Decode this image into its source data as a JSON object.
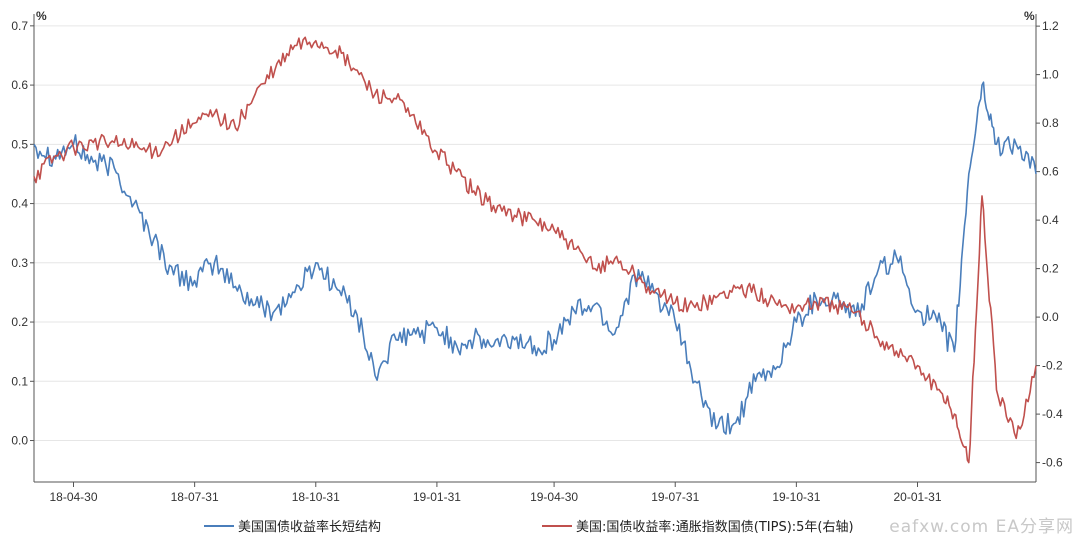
{
  "chart_data": {
    "type": "line",
    "left_axis": {
      "unit": "%",
      "ylim": [
        -0.07,
        0.72
      ],
      "ticks": [
        "0.0",
        "0.1",
        "0.2",
        "0.3",
        "0.4",
        "0.5",
        "0.6",
        "0.7"
      ]
    },
    "right_axis": {
      "unit": "%",
      "ylim": [
        -0.68,
        1.25
      ],
      "ticks": [
        "-0.6",
        "-0.4",
        "-0.2",
        "0.0",
        "0.2",
        "0.4",
        "0.6",
        "0.8",
        "1.0",
        "1.2"
      ]
    },
    "x_ticks": [
      "18-04-30",
      "18-07-31",
      "18-10-31",
      "19-01-31",
      "19-04-30",
      "19-07-31",
      "19-10-31",
      "20-01-31"
    ],
    "grid": true,
    "legend_position": "bottom",
    "x": [
      "2018-03-31",
      "2018-04-15",
      "2018-04-30",
      "2018-05-15",
      "2018-05-31",
      "2018-06-15",
      "2018-06-30",
      "2018-07-15",
      "2018-07-31",
      "2018-08-15",
      "2018-08-31",
      "2018-09-15",
      "2018-09-30",
      "2018-10-15",
      "2018-10-31",
      "2018-11-15",
      "2018-11-30",
      "2018-12-15",
      "2018-12-31",
      "2019-01-15",
      "2019-01-31",
      "2019-02-15",
      "2019-02-28",
      "2019-03-15",
      "2019-03-31",
      "2019-04-15",
      "2019-04-30",
      "2019-05-15",
      "2019-05-31",
      "2019-06-15",
      "2019-06-30",
      "2019-07-15",
      "2019-07-31",
      "2019-08-15",
      "2019-08-31",
      "2019-09-15",
      "2019-09-30",
      "2019-10-15",
      "2019-10-31",
      "2019-11-15",
      "2019-11-30",
      "2019-12-15",
      "2019-12-31",
      "2020-01-15",
      "2020-01-31",
      "2020-02-15",
      "2020-02-28",
      "2020-03-10",
      "2020-03-20",
      "2020-03-31",
      "2020-04-15",
      "2020-04-30"
    ],
    "series": [
      {
        "name": "美国国债收益率长短结构",
        "color": "#4a7ebb",
        "axis": "left",
        "values": [
          0.5,
          0.48,
          0.5,
          0.47,
          0.46,
          0.4,
          0.34,
          0.28,
          0.27,
          0.3,
          0.26,
          0.23,
          0.22,
          0.25,
          0.3,
          0.26,
          0.22,
          0.11,
          0.17,
          0.18,
          0.19,
          0.16,
          0.17,
          0.16,
          0.17,
          0.16,
          0.17,
          0.22,
          0.23,
          0.18,
          0.28,
          0.25,
          0.2,
          0.1,
          0.02,
          0.03,
          0.1,
          0.12,
          0.2,
          0.24,
          0.24,
          0.21,
          0.28,
          0.31,
          0.22,
          0.2,
          0.15,
          0.45,
          0.6,
          0.5,
          0.5,
          0.45
        ]
      },
      {
        "name": "美国:国债收益率:通胀指数国债(TIPS):5年(右轴)",
        "color": "#c0504d",
        "axis": "right",
        "values": [
          0.58,
          0.66,
          0.7,
          0.72,
          0.72,
          0.7,
          0.68,
          0.74,
          0.8,
          0.84,
          0.78,
          0.92,
          1.02,
          1.12,
          1.14,
          1.1,
          1.02,
          0.92,
          0.9,
          0.8,
          0.68,
          0.6,
          0.52,
          0.46,
          0.42,
          0.4,
          0.36,
          0.28,
          0.2,
          0.24,
          0.18,
          0.1,
          0.06,
          0.04,
          0.08,
          0.12,
          0.1,
          0.06,
          0.04,
          0.06,
          0.05,
          0.02,
          -0.08,
          -0.14,
          -0.2,
          -0.3,
          -0.4,
          -0.6,
          0.5,
          -0.3,
          -0.5,
          -0.2
        ]
      }
    ]
  },
  "legend": [
    {
      "label": "美国国债收益率长短结构",
      "color": "#4a7ebb"
    },
    {
      "label": "美国:国债收益率:通胀指数国债(TIPS):5年(右轴)",
      "color": "#c0504d"
    }
  ],
  "watermark": "eafxw.com EA分享网"
}
